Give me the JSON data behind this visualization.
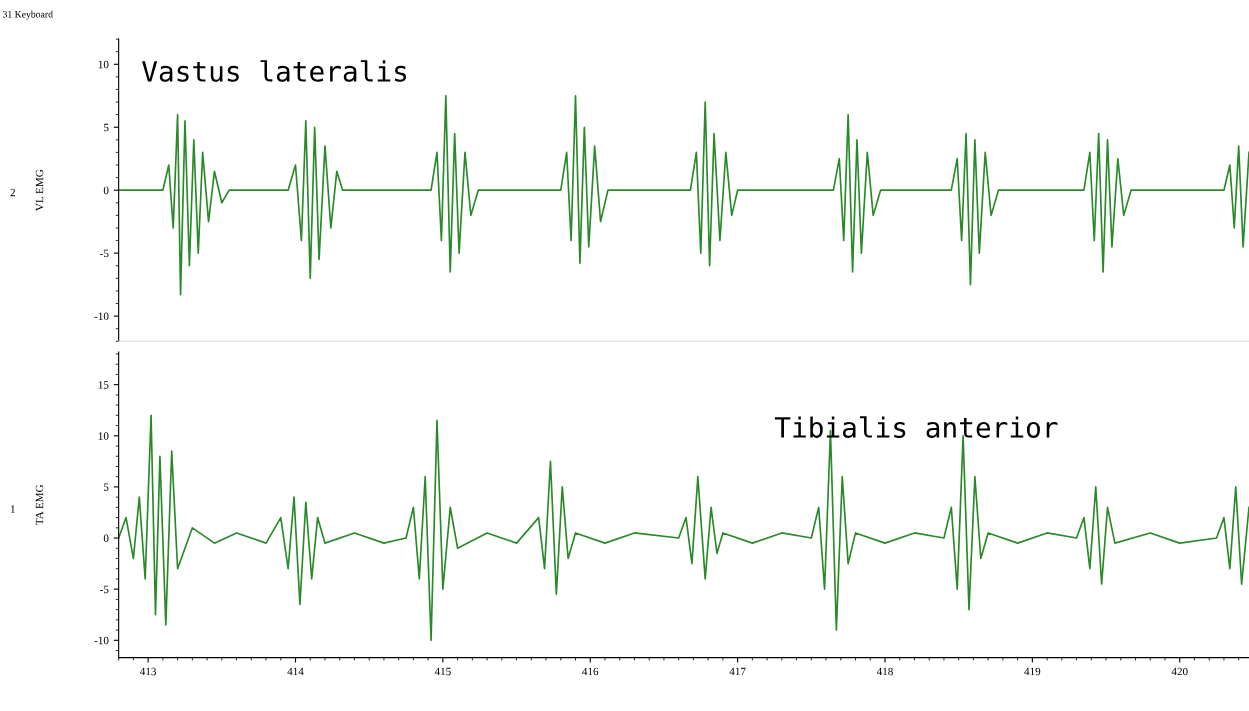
{
  "chart_data": [
    {
      "type": "line",
      "ylabel": "VL EMG",
      "annotations": [
        "31 Keyboard",
        "2",
        "Vastus lateralis"
      ],
      "xlim": [
        412.8,
        420.47
      ],
      "ylim": [
        -12,
        12
      ],
      "yticks": [
        -10,
        -5,
        0,
        5,
        10
      ],
      "tick_labels": "y",
      "grid": false,
      "legend": false,
      "marker": "none",
      "line_style": "solid",
      "series": [
        {
          "color": "#2a8a2a",
          "x": [
            412.8,
            413.1,
            413.14,
            413.17,
            413.2,
            413.22,
            413.25,
            413.28,
            413.31,
            413.34,
            413.37,
            413.41,
            413.45,
            413.5,
            413.55,
            413.95,
            414.0,
            414.04,
            414.07,
            414.1,
            414.13,
            414.16,
            414.2,
            414.24,
            414.28,
            414.32,
            414.92,
            414.96,
            414.99,
            415.02,
            415.05,
            415.08,
            415.11,
            415.15,
            415.19,
            415.24,
            415.8,
            415.84,
            415.87,
            415.9,
            415.93,
            415.96,
            415.99,
            416.03,
            416.07,
            416.12,
            416.68,
            416.72,
            416.75,
            416.78,
            416.81,
            416.84,
            416.88,
            416.92,
            416.96,
            417.0,
            417.65,
            417.69,
            417.72,
            417.75,
            417.78,
            417.81,
            417.84,
            417.88,
            417.92,
            417.97,
            418.45,
            418.49,
            418.52,
            418.55,
            418.58,
            418.61,
            418.64,
            418.68,
            418.72,
            418.77,
            419.35,
            419.39,
            419.42,
            419.45,
            419.48,
            419.51,
            419.54,
            419.58,
            419.62,
            419.67,
            420.3,
            420.34,
            420.37,
            420.4,
            420.43,
            420.47
          ],
          "values": [
            0,
            0,
            2,
            -3,
            6,
            -8.3,
            5.5,
            -6,
            4,
            -5,
            3,
            -2.5,
            1.5,
            -1,
            0,
            0,
            2,
            -4,
            5.5,
            -7,
            5,
            -5.5,
            3.5,
            -3,
            1.5,
            0,
            0,
            3,
            -4,
            7.5,
            -6.5,
            4.5,
            -5,
            3,
            -2,
            0,
            0,
            3,
            -4,
            7.5,
            -5.8,
            5,
            -4.5,
            3.5,
            -2.5,
            0,
            0,
            3,
            -5,
            7,
            -6,
            4.5,
            -4,
            3,
            -2,
            0,
            0,
            2.5,
            -4,
            6,
            -6.5,
            4,
            -5,
            3,
            -2,
            0,
            0,
            2.5,
            -4,
            4.5,
            -7.5,
            4,
            -5,
            3,
            -2,
            0,
            0,
            3,
            -4,
            4.5,
            -6.5,
            4,
            -4.5,
            2.5,
            -2,
            0,
            0,
            2,
            -3,
            3.5,
            -4.5,
            3
          ]
        }
      ]
    },
    {
      "type": "line",
      "ylabel": "TA EMG",
      "annotations": [
        "1",
        "Tibialis anterior"
      ],
      "xlim": [
        412.8,
        420.47
      ],
      "ylim": [
        -11.7,
        18.2
      ],
      "yticks": [
        -10,
        -5,
        0,
        5,
        10,
        15
      ],
      "xticks": [
        413,
        414,
        415,
        416,
        417,
        418,
        419,
        420
      ],
      "grid": false,
      "legend": false,
      "marker": "none",
      "line_style": "solid",
      "series": [
        {
          "color": "#2a8a2a",
          "x": [
            412.8,
            412.85,
            412.9,
            412.94,
            412.98,
            413.02,
            413.05,
            413.08,
            413.12,
            413.16,
            413.2,
            413.3,
            413.45,
            413.6,
            413.8,
            413.9,
            413.95,
            413.99,
            414.03,
            414.07,
            414.11,
            414.15,
            414.2,
            414.4,
            414.6,
            414.75,
            414.8,
            414.84,
            414.88,
            414.92,
            414.96,
            415.0,
            415.05,
            415.1,
            415.3,
            415.5,
            415.65,
            415.69,
            415.73,
            415.77,
            415.81,
            415.85,
            415.9,
            416.1,
            416.3,
            416.6,
            416.65,
            416.69,
            416.73,
            416.78,
            416.82,
            416.86,
            416.9,
            417.1,
            417.3,
            417.5,
            417.55,
            417.59,
            417.63,
            417.67,
            417.71,
            417.75,
            417.8,
            418.0,
            418.2,
            418.4,
            418.45,
            418.49,
            418.53,
            418.57,
            418.61,
            418.65,
            418.7,
            418.9,
            419.1,
            419.3,
            419.35,
            419.39,
            419.43,
            419.47,
            419.51,
            419.56,
            419.8,
            420.0,
            420.25,
            420.3,
            420.34,
            420.38,
            420.42,
            420.47
          ],
          "values": [
            0,
            2,
            -2,
            4,
            -4,
            12,
            -7.5,
            8,
            -8.5,
            8.5,
            -3,
            1,
            -0.5,
            0.5,
            -0.5,
            2,
            -3,
            4,
            -6.5,
            3.5,
            -4,
            2,
            -0.5,
            0.5,
            -0.5,
            0,
            3,
            -4,
            6,
            -10,
            11.5,
            -5,
            3,
            -1,
            0.5,
            -0.5,
            2,
            -3,
            7.5,
            -5.5,
            5,
            -2,
            0.5,
            -0.5,
            0.5,
            0,
            2,
            -2.5,
            6,
            -4,
            3,
            -1.5,
            0.5,
            -0.5,
            0.5,
            0,
            3,
            -5,
            10.5,
            -9,
            6,
            -2.5,
            0.5,
            -0.5,
            0.5,
            0,
            3,
            -5,
            10,
            -7,
            6,
            -2,
            0.5,
            -0.5,
            0.5,
            0,
            2,
            -3,
            5,
            -4.5,
            3,
            -0.5,
            0.5,
            -0.5,
            0,
            2,
            -3,
            5,
            -4.5,
            3
          ]
        }
      ]
    }
  ]
}
